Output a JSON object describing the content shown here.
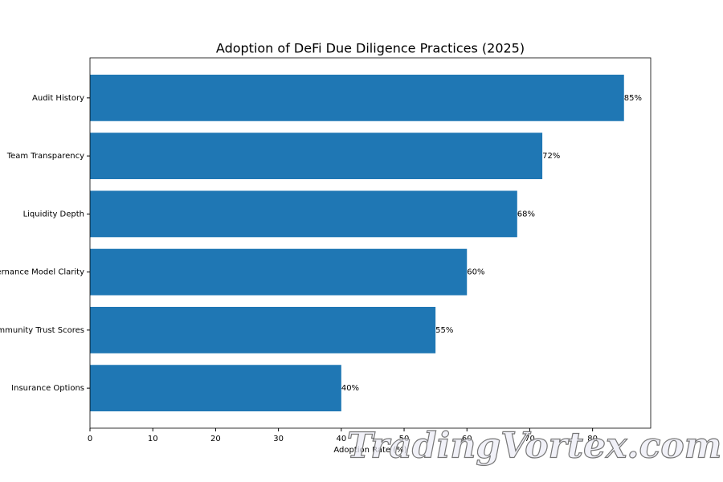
{
  "chart_data": {
    "type": "barh",
    "title": "Adoption of DeFi Due Diligence Practices (2025)",
    "x_label": "Adoption Rate (%)",
    "categories": [
      "Audit History",
      "Team Transparency",
      "Liquidity Depth",
      "Governance Model Clarity",
      "Community Trust Scores",
      "Insurance Options"
    ],
    "values": [
      85,
      72,
      68,
      60,
      55,
      40
    ],
    "value_labels": [
      "85%",
      "72%",
      "68%",
      "60%",
      "55%",
      "40%"
    ],
    "color": "#1f77b4",
    "xlim": [
      0,
      89.25
    ],
    "xticks": [
      0,
      10,
      20,
      30,
      40,
      50,
      60,
      70,
      80
    ],
    "watermark": "TradingVortex.com"
  }
}
